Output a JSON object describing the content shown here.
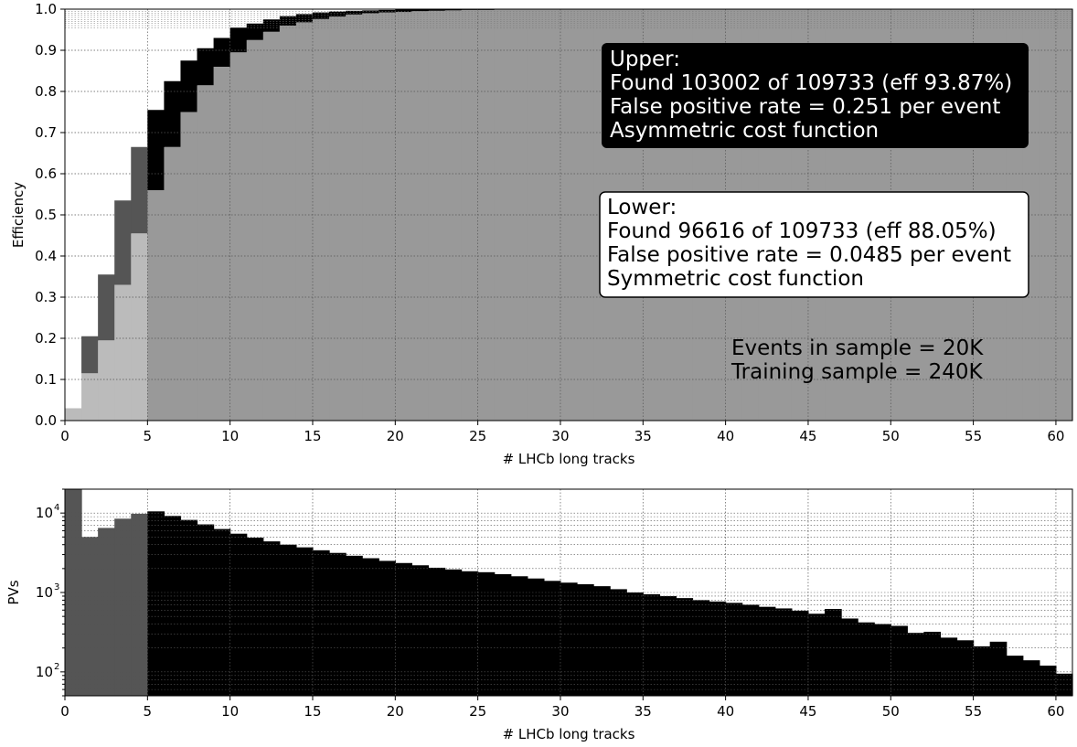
{
  "chart_data": [
    {
      "type": "bar",
      "description_type": "step histogram (efficiency vs. track multiplicity)",
      "xlabel": "# LHCb long tracks",
      "ylabel": "Efficiency",
      "xlim": [
        0,
        61
      ],
      "ylim": [
        0,
        1.0
      ],
      "x_ticks": [
        "0",
        "5",
        "10",
        "15",
        "20",
        "25",
        "30",
        "35",
        "40",
        "45",
        "50",
        "55",
        "60"
      ],
      "y_ticks": [
        "0.0",
        "0.1",
        "0.2",
        "0.3",
        "0.4",
        "0.5",
        "0.6",
        "0.7",
        "0.8",
        "0.9",
        "1.0"
      ],
      "grid": true,
      "colors": {
        "band": "#000000",
        "band_low": "#555555",
        "fill": "#999999",
        "fill_low": "#bbbbbb"
      },
      "series": [
        {
          "name": "Upper",
          "values": [
            0.03,
            0.205,
            0.355,
            0.535,
            0.665,
            0.755,
            0.825,
            0.875,
            0.905,
            0.93,
            0.955,
            0.965,
            0.975,
            0.983,
            0.988,
            0.992,
            0.994,
            0.996,
            0.997,
            0.998,
            0.999,
            0.999,
            1.0,
            1.0,
            1.0,
            1.0,
            1.0,
            1.0,
            1.0,
            1.0,
            1.0,
            1.0,
            1.0,
            1.0,
            1.0,
            1.0,
            1.0,
            1.0,
            1.0,
            1.0,
            1.0,
            1.0,
            1.0,
            1.0,
            1.0,
            1.0,
            1.0,
            1.0,
            1.0,
            1.0,
            1.0,
            1.0,
            1.0,
            1.0,
            1.0,
            1.0,
            1.0,
            1.0,
            1.0,
            1.0,
            1.0
          ]
        },
        {
          "name": "Lower",
          "values": [
            0.03,
            0.115,
            0.195,
            0.33,
            0.455,
            0.56,
            0.665,
            0.75,
            0.815,
            0.86,
            0.895,
            0.925,
            0.945,
            0.96,
            0.968,
            0.976,
            0.982,
            0.987,
            0.99,
            0.992,
            0.993,
            0.995,
            0.996,
            0.997,
            0.998,
            0.998,
            0.999,
            0.999,
            0.999,
            0.999,
            1.0,
            1.0,
            1.0,
            1.0,
            1.0,
            1.0,
            1.0,
            1.0,
            1.0,
            1.0,
            1.0,
            1.0,
            1.0,
            1.0,
            1.0,
            1.0,
            1.0,
            1.0,
            1.0,
            1.0,
            1.0,
            1.0,
            1.0,
            1.0,
            1.0,
            1.0,
            1.0,
            1.0,
            1.0,
            1.0,
            1.0
          ]
        }
      ],
      "annotations": {
        "upper_box": {
          "lines": [
            "Upper:",
            "Found 103002 of 109733 (eff 93.87%)",
            "False positive rate = 0.251 per event",
            "Asymmetric cost function"
          ]
        },
        "lower_box": {
          "lines": [
            "Lower:",
            "Found 96616 of 109733 (eff 88.05%)",
            "False positive rate = 0.0485 per event",
            "Symmetric cost function"
          ]
        },
        "sample_text": {
          "lines": [
            "Events in sample = 20K",
            "Training sample = 240K"
          ]
        }
      }
    },
    {
      "type": "bar",
      "description_type": "histogram (log scale)",
      "xlabel": "# LHCb long tracks",
      "ylabel": "PVs",
      "xlim": [
        0,
        61
      ],
      "ylim": [
        50,
        20000
      ],
      "y_scale": "log",
      "x_ticks": [
        "0",
        "5",
        "10",
        "15",
        "20",
        "25",
        "30",
        "35",
        "40",
        "45",
        "50",
        "55",
        "60"
      ],
      "grid": true,
      "colors": {
        "bars": "#000000",
        "bars_low": "#555555"
      },
      "values": [
        20000,
        5000,
        6500,
        8500,
        9800,
        10500,
        9200,
        8200,
        7200,
        6300,
        5500,
        4900,
        4400,
        4000,
        3700,
        3400,
        3150,
        2900,
        2700,
        2500,
        2350,
        2200,
        2050,
        1950,
        1850,
        1800,
        1700,
        1600,
        1500,
        1400,
        1330,
        1270,
        1200,
        1100,
        1000,
        950,
        900,
        850,
        800,
        770,
        740,
        700,
        660,
        630,
        590,
        540,
        620,
        470,
        420,
        400,
        380,
        310,
        320,
        270,
        250,
        210,
        240,
        160,
        140,
        120,
        95,
        100
      ]
    }
  ]
}
